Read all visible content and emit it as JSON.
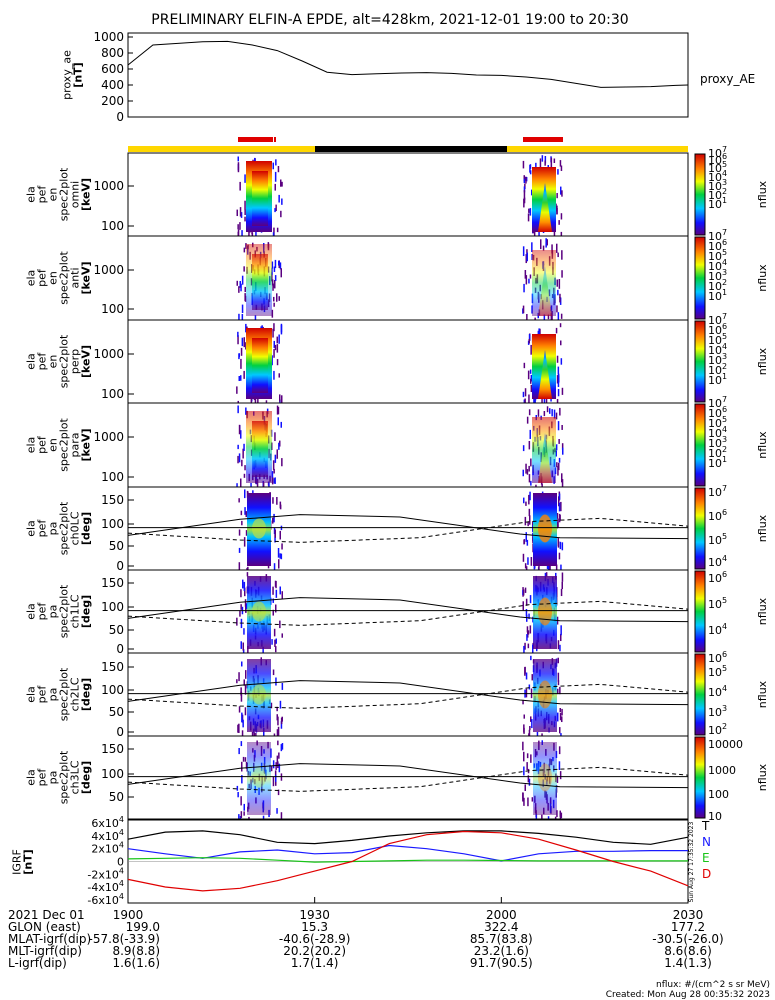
{
  "title": "PRELIMINARY ELFIN-A EPDE, alt=428km, 2021-12-01 19:00 to 20:30",
  "chart_data": [
    {
      "type": "line",
      "name": "proxy_ae",
      "ylabel_lines": [
        "proxy_ae",
        "[nT]"
      ],
      "legend": "proxy_AE",
      "yticks": [
        "1000",
        "800",
        "600",
        "400",
        "200",
        "0"
      ],
      "ylim": [
        0,
        1050
      ],
      "x_minutes": [
        0,
        4,
        8,
        12,
        16,
        20,
        24,
        28,
        32,
        36,
        40,
        44,
        48,
        52,
        56,
        60,
        64,
        68,
        72,
        76,
        80,
        84,
        88,
        90
      ],
      "values": [
        650,
        900,
        920,
        940,
        945,
        900,
        830,
        700,
        560,
        530,
        540,
        550,
        555,
        545,
        525,
        520,
        500,
        470,
        420,
        370,
        375,
        380,
        395,
        400
      ]
    },
    {
      "type": "heatmap",
      "name": "ela_pef_en_spec2plot_omni",
      "ylabel_lines": [
        "ela",
        "pef",
        "en",
        "spec2plot",
        "omni",
        "[keV]"
      ],
      "yticks": [
        "1000",
        "100"
      ],
      "cbar_label": "nflux",
      "cbar_ticks": [
        "10^7",
        "10^6",
        "10^5",
        "10^4",
        "10^3",
        "10^2",
        "10^1"
      ]
    },
    {
      "type": "heatmap",
      "name": "ela_pef_en_spec2plot_anti",
      "ylabel_lines": [
        "ela",
        "pef",
        "en",
        "spec2plot",
        "anti",
        "[keV]"
      ],
      "yticks": [
        "1000",
        "100"
      ],
      "cbar_label": "nflux",
      "cbar_ticks": [
        "10^7",
        "10^6",
        "10^5",
        "10^4",
        "10^3",
        "10^2",
        "10^1"
      ]
    },
    {
      "type": "heatmap",
      "name": "ela_pef_en_spec2plot_perp",
      "ylabel_lines": [
        "ela",
        "pef",
        "en",
        "spec2plot",
        "perp",
        "[keV]"
      ],
      "yticks": [
        "1000",
        "100"
      ],
      "cbar_label": "nflux",
      "cbar_ticks": [
        "10^7",
        "10^6",
        "10^5",
        "10^4",
        "10^3",
        "10^2",
        "10^1"
      ]
    },
    {
      "type": "heatmap",
      "name": "ela_pef_en_spec2plot_para",
      "ylabel_lines": [
        "ela",
        "pef",
        "en",
        "spec2plot",
        "para",
        "[keV]"
      ],
      "yticks": [
        "1000",
        "100"
      ],
      "cbar_label": "nflux",
      "cbar_ticks": [
        "10^7",
        "10^6",
        "10^5",
        "10^4",
        "10^3",
        "10^2",
        "10^1"
      ]
    },
    {
      "type": "heatmap",
      "name": "ela_pef_pa_spec2plot_ch0LC",
      "ylabel_lines": [
        "ela",
        "pef",
        "pa",
        "spec2plot",
        "ch0LC",
        "[deg]"
      ],
      "yticks": [
        "150",
        "100",
        "50",
        "0"
      ],
      "cbar_label": "nflux",
      "cbar_ticks": [
        "10^7",
        "10^6",
        "10^5",
        "10^4"
      ]
    },
    {
      "type": "heatmap",
      "name": "ela_pef_pa_spec2plot_ch1LC",
      "ylabel_lines": [
        "ela",
        "pef",
        "pa",
        "spec2plot",
        "ch1LC",
        "[deg]"
      ],
      "yticks": [
        "150",
        "100",
        "50",
        "0"
      ],
      "cbar_label": "nflux",
      "cbar_ticks": [
        "10^6",
        "10^5",
        "10^4"
      ]
    },
    {
      "type": "heatmap",
      "name": "ela_pef_pa_spec2plot_ch2LC",
      "ylabel_lines": [
        "ela",
        "pef",
        "pa",
        "spec2plot",
        "ch2LC",
        "[deg]"
      ],
      "yticks": [
        "150",
        "100",
        "50",
        "0"
      ],
      "cbar_label": "nflux",
      "cbar_ticks": [
        "10^6",
        "10^5",
        "10^4",
        "10^3",
        "10^2"
      ]
    },
    {
      "type": "heatmap",
      "name": "ela_pef_pa_spec2plot_ch3LC",
      "ylabel_lines": [
        "ela",
        "pef",
        "pa",
        "spec2plot",
        "ch3LC",
        "[deg]"
      ],
      "yticks": [
        "150",
        "100",
        "50"
      ],
      "cbar_label": "nflux",
      "cbar_ticks": [
        "10000",
        "1000",
        "100",
        "10"
      ]
    },
    {
      "type": "line",
      "name": "IGRF",
      "ylabel_lines": [
        "IGRF",
        "[nT]"
      ],
      "yticks": [
        "6x10^4",
        "4x10^4",
        "2x10^4",
        "0",
        "-2x10^4",
        "-4x10^4",
        "-6x10^4"
      ],
      "ylim": [
        -65000,
        65000
      ],
      "legend": [
        "T",
        "N",
        "E",
        "D"
      ],
      "x_minutes": [
        0,
        6,
        12,
        18,
        24,
        30,
        36,
        42,
        48,
        54,
        60,
        66,
        72,
        78,
        84,
        90
      ],
      "series": [
        {
          "name": "T",
          "values": [
            35000,
            46000,
            48000,
            42000,
            30000,
            28000,
            33000,
            40000,
            45000,
            48000,
            48000,
            44000,
            38000,
            30000,
            27000,
            38000
          ]
        },
        {
          "name": "N",
          "values": [
            20000,
            12000,
            5000,
            15000,
            18000,
            12000,
            14000,
            25000,
            20000,
            12000,
            1000,
            12000,
            16000,
            16000,
            17000,
            17000
          ]
        },
        {
          "name": "E",
          "values": [
            4000,
            5000,
            6000,
            5000,
            2000,
            -1000,
            0,
            1000,
            2000,
            2000,
            1500,
            1000,
            1000,
            1000,
            1000,
            1000
          ]
        },
        {
          "name": "D",
          "values": [
            -28000,
            -40000,
            -46000,
            -42000,
            -30000,
            -15000,
            0,
            28000,
            42000,
            47000,
            45000,
            35000,
            18000,
            0,
            -15000,
            -38000
          ]
        }
      ]
    }
  ],
  "time_axis": {
    "date_label": "2021 Dec 01",
    "ticks": [
      "1900",
      "1930",
      "2000",
      "2030"
    ]
  },
  "ephemeris": {
    "rows": [
      {
        "label": "GLON (east)",
        "values": [
          "199.0",
          "15.3",
          "322.4",
          "177.2"
        ]
      },
      {
        "label": "MLAT-igrf(dip)",
        "values": [
          "-57.8(-33.9)",
          "-40.6(-28.9)",
          "85.7(83.8)",
          "-30.5(-26.0)"
        ]
      },
      {
        "label": "MLT-igrf(dip)",
        "values": [
          "8.9(8.8)",
          "20.2(20.2)",
          "23.2(1.6)",
          "8.6(8.6)"
        ]
      },
      {
        "label": "L-igrf(dip)",
        "values": [
          "1.6(1.6)",
          "1.7(1.4)",
          "91.7(90.5)",
          "1.4(1.3)"
        ]
      }
    ]
  },
  "footer": {
    "units": "nflux: #/(cm^2 s sr MeV)",
    "created": "Created: Mon Aug 28 00:35:32 2023",
    "side_stamp": "Sun Aug 27 17:35:32 2023"
  },
  "colors": {
    "status_yellow": "#ffd700",
    "status_black": "#000000",
    "science_red": "#e00000",
    "T": "#000000",
    "N": "#1a1aff",
    "E": "#18c418",
    "D": "#e00000"
  }
}
